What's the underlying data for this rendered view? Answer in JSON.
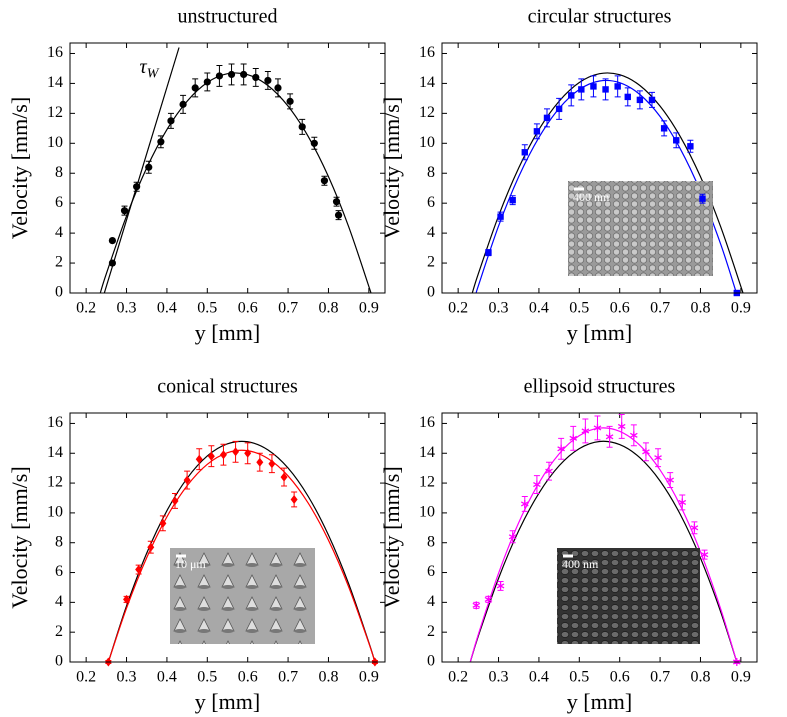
{
  "chart_data": [
    {
      "type": "scatter",
      "title": "unstructured",
      "xlabel": "y [mm]",
      "ylabel": "Velocity [mm/s]",
      "xlim": [
        0.16,
        0.94
      ],
      "ylim": [
        0,
        16.7
      ],
      "xticks": [
        0.2,
        0.3,
        0.4,
        0.5,
        0.6,
        0.7,
        0.8,
        0.9
      ],
      "yticks": [
        0,
        2,
        4,
        6,
        8,
        10,
        12,
        14,
        16
      ],
      "annotation": {
        "text": "τ",
        "sub": "W",
        "x": 0.35,
        "y": 15
      },
      "series": [
        {
          "color": "#000000",
          "marker": "circle",
          "x": [
            0.265,
            0.265,
            0.295,
            0.325,
            0.355,
            0.385,
            0.41,
            0.44,
            0.47,
            0.5,
            0.53,
            0.56,
            0.59,
            0.62,
            0.65,
            0.675,
            0.705,
            0.735,
            0.765,
            0.79,
            0.82,
            0.825
          ],
          "values": [
            3.5,
            2.0,
            5.5,
            7.1,
            8.4,
            10.1,
            11.5,
            12.6,
            13.7,
            14.1,
            14.5,
            14.6,
            14.6,
            14.4,
            14.2,
            13.7,
            12.8,
            11.1,
            10.0,
            7.5,
            6.1,
            5.2
          ],
          "errors": [
            0.1,
            0.1,
            0.3,
            0.3,
            0.4,
            0.4,
            0.5,
            0.6,
            0.6,
            0.6,
            0.7,
            0.7,
            0.7,
            0.6,
            0.6,
            0.6,
            0.5,
            0.5,
            0.4,
            0.3,
            0.3,
            0.3
          ]
        }
      ],
      "lines": [
        {
          "color": "#000000",
          "x": [
            0.235,
            0.25,
            0.3,
            0.35,
            0.4,
            0.45,
            0.5,
            0.55,
            0.6,
            0.65,
            0.7,
            0.75,
            0.8,
            0.85,
            0.9,
            0.905
          ],
          "values": [
            0,
            1.29,
            5.15,
            8.36,
            10.92,
            12.81,
            14.06,
            14.65,
            14.58,
            13.86,
            12.48,
            10.45,
            7.77,
            4.43,
            0.44,
            0
          ]
        },
        {
          "color": "#000000",
          "x": [
            0.245,
            0.43
          ],
          "values": [
            0,
            16.4
          ]
        }
      ]
    },
    {
      "type": "scatter",
      "title": "circular structures",
      "xlabel": "y [mm]",
      "ylabel": "Velocity [mm/s]",
      "xlim": [
        0.16,
        0.94
      ],
      "ylim": [
        0,
        16.7
      ],
      "xticks": [
        0.2,
        0.3,
        0.4,
        0.5,
        0.6,
        0.7,
        0.8,
        0.9
      ],
      "yticks": [
        0,
        2,
        4,
        6,
        8,
        10,
        12,
        14,
        16
      ],
      "inset_label": "400 nm",
      "series": [
        {
          "color": "#0000ff",
          "marker": "square",
          "x": [
            0.275,
            0.305,
            0.335,
            0.365,
            0.395,
            0.42,
            0.45,
            0.48,
            0.505,
            0.535,
            0.565,
            0.595,
            0.62,
            0.65,
            0.68,
            0.71,
            0.74,
            0.775,
            0.805,
            0.89
          ],
          "values": [
            2.7,
            5.1,
            6.2,
            9.4,
            10.8,
            11.7,
            12.3,
            13.2,
            13.6,
            13.8,
            13.6,
            13.8,
            13.1,
            12.9,
            12.9,
            11.0,
            10.2,
            9.8,
            6.3,
            0
          ],
          "errors": [
            0.2,
            0.3,
            0.3,
            0.5,
            0.5,
            0.6,
            0.7,
            0.7,
            0.7,
            0.7,
            0.7,
            0.7,
            0.6,
            0.6,
            0.5,
            0.5,
            0.5,
            0.4,
            0.3,
            0.1
          ]
        }
      ],
      "lines": [
        {
          "color": "#000000",
          "x": [
            0.235,
            0.25,
            0.3,
            0.35,
            0.4,
            0.45,
            0.5,
            0.55,
            0.6,
            0.65,
            0.7,
            0.75,
            0.8,
            0.85,
            0.9,
            0.905
          ],
          "values": [
            0,
            1.29,
            5.15,
            8.36,
            10.92,
            12.81,
            14.06,
            14.65,
            14.58,
            13.86,
            12.48,
            10.45,
            7.77,
            4.43,
            0.44,
            0
          ]
        },
        {
          "color": "#0000ff",
          "x": [
            0.245,
            0.25,
            0.3,
            0.35,
            0.4,
            0.45,
            0.5,
            0.55,
            0.6,
            0.65,
            0.7,
            0.75,
            0.8,
            0.85,
            0.889
          ],
          "values": [
            0,
            0.48,
            4.47,
            7.77,
            10.39,
            12.33,
            13.59,
            14.16,
            14.05,
            13.26,
            11.79,
            9.63,
            6.79,
            3.27,
            0
          ]
        }
      ]
    },
    {
      "type": "scatter",
      "title": "conical structures",
      "xlabel": "y [mm]",
      "ylabel": "Velocity [mm/s]",
      "xlim": [
        0.16,
        0.94
      ],
      "ylim": [
        0,
        16.7
      ],
      "xticks": [
        0.2,
        0.3,
        0.4,
        0.5,
        0.6,
        0.7,
        0.8,
        0.9
      ],
      "yticks": [
        0,
        2,
        4,
        6,
        8,
        10,
        12,
        14,
        16
      ],
      "inset_label": "10 μm",
      "series": [
        {
          "color": "#ff0000",
          "marker": "diamond",
          "x": [
            0.255,
            0.3,
            0.33,
            0.36,
            0.39,
            0.42,
            0.45,
            0.48,
            0.51,
            0.54,
            0.57,
            0.6,
            0.63,
            0.66,
            0.69,
            0.715,
            0.915
          ],
          "values": [
            0,
            4.2,
            6.2,
            7.7,
            9.3,
            10.8,
            12.2,
            13.6,
            13.8,
            13.9,
            14.1,
            14.0,
            13.4,
            13.3,
            12.4,
            10.9,
            0
          ],
          "errors": [
            0.1,
            0.2,
            0.3,
            0.4,
            0.5,
            0.5,
            0.6,
            0.7,
            0.7,
            0.7,
            0.7,
            0.7,
            0.6,
            0.6,
            0.6,
            0.5,
            0.1
          ]
        }
      ],
      "lines": [
        {
          "color": "#000000",
          "x": [
            0.255,
            0.3,
            0.35,
            0.4,
            0.45,
            0.5,
            0.55,
            0.6,
            0.65,
            0.7,
            0.75,
            0.8,
            0.85,
            0.9,
            0.915
          ],
          "values": [
            0,
            3.76,
            7.3,
            10.15,
            12.32,
            13.82,
            14.63,
            14.77,
            14.23,
            13.01,
            11.1,
            8.51,
            5.25,
            1.31,
            0
          ]
        },
        {
          "color": "#ff0000",
          "x": [
            0.255,
            0.3,
            0.35,
            0.4,
            0.45,
            0.5,
            0.55,
            0.6,
            0.65,
            0.7,
            0.75,
            0.8,
            0.85,
            0.9,
            0.915
          ],
          "values": [
            0,
            3.61,
            7.0,
            9.74,
            11.82,
            13.26,
            14.04,
            14.17,
            13.65,
            12.48,
            10.65,
            8.17,
            5.04,
            1.26,
            0
          ]
        }
      ]
    },
    {
      "type": "scatter",
      "title": "ellipsoid structures",
      "xlabel": "y [mm]",
      "ylabel": "Velocity [mm/s]",
      "xlim": [
        0.16,
        0.94
      ],
      "ylim": [
        0,
        16.7
      ],
      "xticks": [
        0.2,
        0.3,
        0.4,
        0.5,
        0.6,
        0.7,
        0.8,
        0.9
      ],
      "yticks": [
        0,
        2,
        4,
        6,
        8,
        10,
        12,
        14,
        16
      ],
      "inset_label": "400 nm",
      "series": [
        {
          "color": "#ff00ff",
          "marker": "star",
          "x": [
            0.245,
            0.275,
            0.305,
            0.335,
            0.365,
            0.395,
            0.425,
            0.455,
            0.485,
            0.515,
            0.545,
            0.575,
            0.605,
            0.635,
            0.665,
            0.695,
            0.725,
            0.755,
            0.785,
            0.81,
            0.89
          ],
          "values": [
            3.8,
            4.2,
            5.1,
            8.4,
            10.6,
            11.9,
            12.8,
            14.3,
            15.0,
            15.5,
            15.7,
            15.1,
            15.8,
            15.2,
            14.1,
            13.7,
            12.2,
            10.7,
            9.0,
            7.2,
            0
          ],
          "errors": [
            0.2,
            0.2,
            0.3,
            0.4,
            0.5,
            0.6,
            0.6,
            0.7,
            0.8,
            0.8,
            0.8,
            0.7,
            0.8,
            0.7,
            0.6,
            0.6,
            0.5,
            0.5,
            0.4,
            0.3,
            0.1
          ]
        }
      ],
      "lines": [
        {
          "color": "#000000",
          "x": [
            0.23,
            0.25,
            0.3,
            0.35,
            0.4,
            0.45,
            0.5,
            0.55,
            0.6,
            0.65,
            0.7,
            0.75,
            0.8,
            0.85,
            0.89
          ],
          "values": [
            0,
            1.75,
            5.61,
            8.81,
            11.32,
            13.16,
            14.31,
            14.79,
            14.58,
            13.7,
            12.14,
            9.9,
            6.97,
            3.37,
            0
          ]
        },
        {
          "color": "#ff00ff",
          "x": [
            0.23,
            0.25,
            0.3,
            0.35,
            0.4,
            0.45,
            0.5,
            0.55,
            0.6,
            0.65,
            0.7,
            0.75,
            0.8,
            0.85,
            0.89
          ],
          "values": [
            0,
            1.86,
            5.95,
            9.35,
            12.01,
            13.96,
            15.18,
            15.69,
            15.47,
            14.53,
            12.88,
            10.5,
            7.39,
            3.57,
            0
          ]
        }
      ]
    }
  ]
}
